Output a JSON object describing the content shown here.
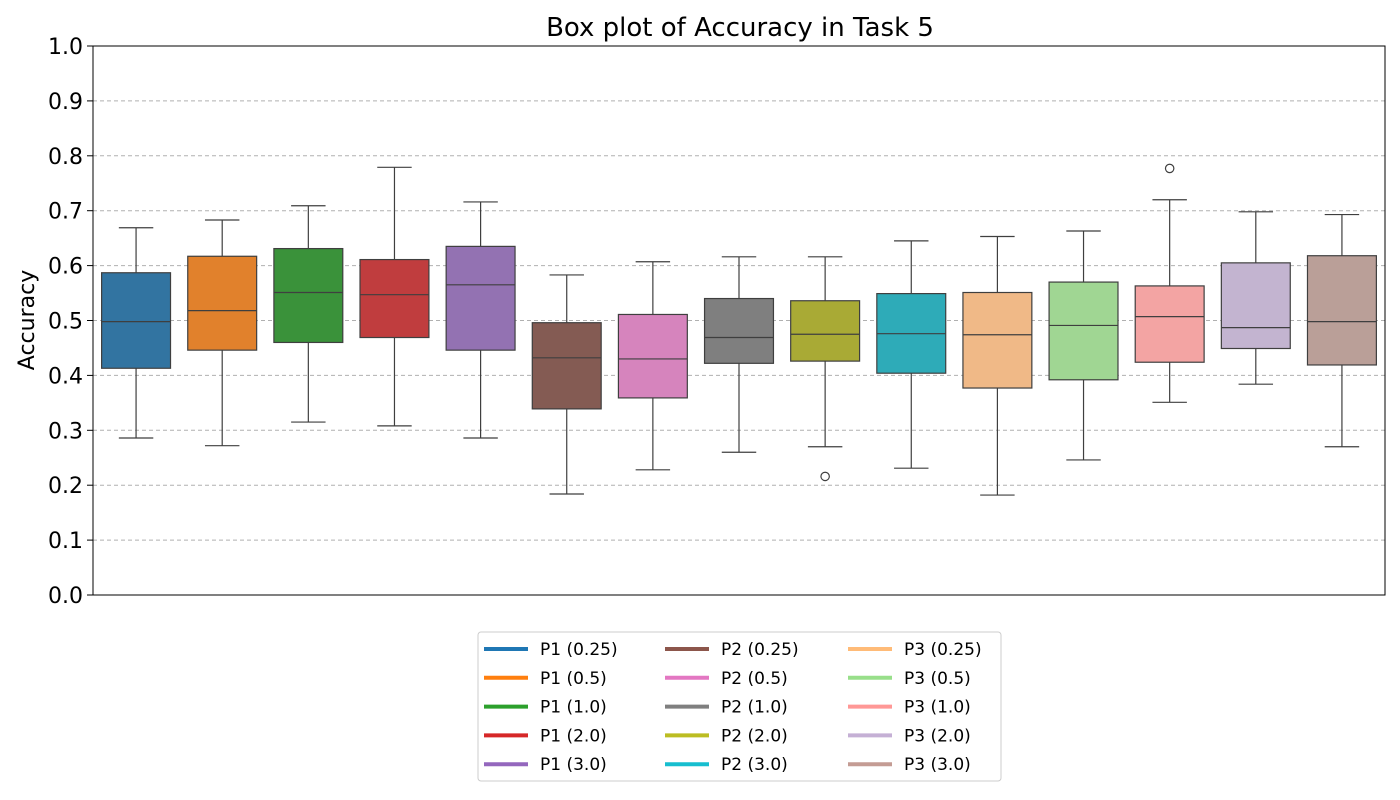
{
  "chart_data": {
    "type": "box",
    "title": "Box plot of Accuracy in Task 5",
    "xlabel": "",
    "ylabel": "Accuracy",
    "ylim": [
      0.0,
      1.0
    ],
    "yticks": [
      "0.0",
      "0.1",
      "0.2",
      "0.3",
      "0.4",
      "0.5",
      "0.6",
      "0.7",
      "0.8",
      "0.9",
      "1.0"
    ],
    "ytick_values": [
      0.0,
      0.1,
      0.2,
      0.3,
      0.4,
      0.5,
      0.6,
      0.7,
      0.8,
      0.9,
      1.0
    ],
    "grid": "y-dashed",
    "legend_position": "bottom-center",
    "series": [
      {
        "name": "P1 (0.25)",
        "color": "#1f77b4",
        "box_color": "#3274a1",
        "whisker_low": 0.286,
        "q1": 0.413,
        "median": 0.498,
        "q3": 0.587,
        "whisker_high": 0.669,
        "outliers": []
      },
      {
        "name": "P1 (0.5)",
        "color": "#ff7f0e",
        "box_color": "#e1812c",
        "whisker_low": 0.272,
        "q1": 0.446,
        "median": 0.518,
        "q3": 0.617,
        "whisker_high": 0.683,
        "outliers": []
      },
      {
        "name": "P1 (1.0)",
        "color": "#2ca02c",
        "box_color": "#3a923a",
        "whisker_low": 0.315,
        "q1": 0.46,
        "median": 0.551,
        "q3": 0.631,
        "whisker_high": 0.709,
        "outliers": []
      },
      {
        "name": "P1 (2.0)",
        "color": "#d62728",
        "box_color": "#c03d3e",
        "whisker_low": 0.308,
        "q1": 0.469,
        "median": 0.547,
        "q3": 0.611,
        "whisker_high": 0.779,
        "outliers": []
      },
      {
        "name": "P1 (3.0)",
        "color": "#9467bd",
        "box_color": "#9372b2",
        "whisker_low": 0.286,
        "q1": 0.446,
        "median": 0.565,
        "q3": 0.635,
        "whisker_high": 0.716,
        "outliers": []
      },
      {
        "name": "P2 (0.25)",
        "color": "#8c564b",
        "box_color": "#845b53",
        "whisker_low": 0.184,
        "q1": 0.339,
        "median": 0.432,
        "q3": 0.496,
        "whisker_high": 0.583,
        "outliers": []
      },
      {
        "name": "P2 (0.5)",
        "color": "#e377c2",
        "box_color": "#d684bd",
        "whisker_low": 0.228,
        "q1": 0.359,
        "median": 0.43,
        "q3": 0.511,
        "whisker_high": 0.607,
        "outliers": []
      },
      {
        "name": "P2 (1.0)",
        "color": "#7f7f7f",
        "box_color": "#7f7f7f",
        "whisker_low": 0.26,
        "q1": 0.422,
        "median": 0.469,
        "q3": 0.54,
        "whisker_high": 0.616,
        "outliers": []
      },
      {
        "name": "P2 (2.0)",
        "color": "#bcbd22",
        "box_color": "#a9aa35",
        "whisker_low": 0.27,
        "q1": 0.426,
        "median": 0.475,
        "q3": 0.536,
        "whisker_high": 0.616,
        "outliers": [
          0.216
        ]
      },
      {
        "name": "P2 (3.0)",
        "color": "#17becf",
        "box_color": "#2eabb8",
        "whisker_low": 0.231,
        "q1": 0.404,
        "median": 0.476,
        "q3": 0.549,
        "whisker_high": 0.645,
        "outliers": []
      },
      {
        "name": "P3 (0.25)",
        "color": "#ffbb78",
        "box_color": "#f0b987",
        "whisker_low": 0.182,
        "q1": 0.377,
        "median": 0.474,
        "q3": 0.551,
        "whisker_high": 0.653,
        "outliers": []
      },
      {
        "name": "P3 (0.5)",
        "color": "#98df8a",
        "box_color": "#a0d693",
        "whisker_low": 0.246,
        "q1": 0.392,
        "median": 0.491,
        "q3": 0.57,
        "whisker_high": 0.663,
        "outliers": []
      },
      {
        "name": "P3 (1.0)",
        "color": "#ff9896",
        "box_color": "#f3a4a3",
        "whisker_low": 0.351,
        "q1": 0.424,
        "median": 0.507,
        "q3": 0.563,
        "whisker_high": 0.72,
        "outliers": [
          0.777
        ]
      },
      {
        "name": "P3 (2.0)",
        "color": "#c5b0d5",
        "box_color": "#c3b4d0",
        "whisker_low": 0.384,
        "q1": 0.449,
        "median": 0.487,
        "q3": 0.605,
        "whisker_high": 0.698,
        "outliers": []
      },
      {
        "name": "P3 (3.0)",
        "color": "#c49c94",
        "box_color": "#ba9f98",
        "whisker_low": 0.27,
        "q1": 0.419,
        "median": 0.498,
        "q3": 0.618,
        "whisker_high": 0.693,
        "outliers": []
      }
    ]
  }
}
